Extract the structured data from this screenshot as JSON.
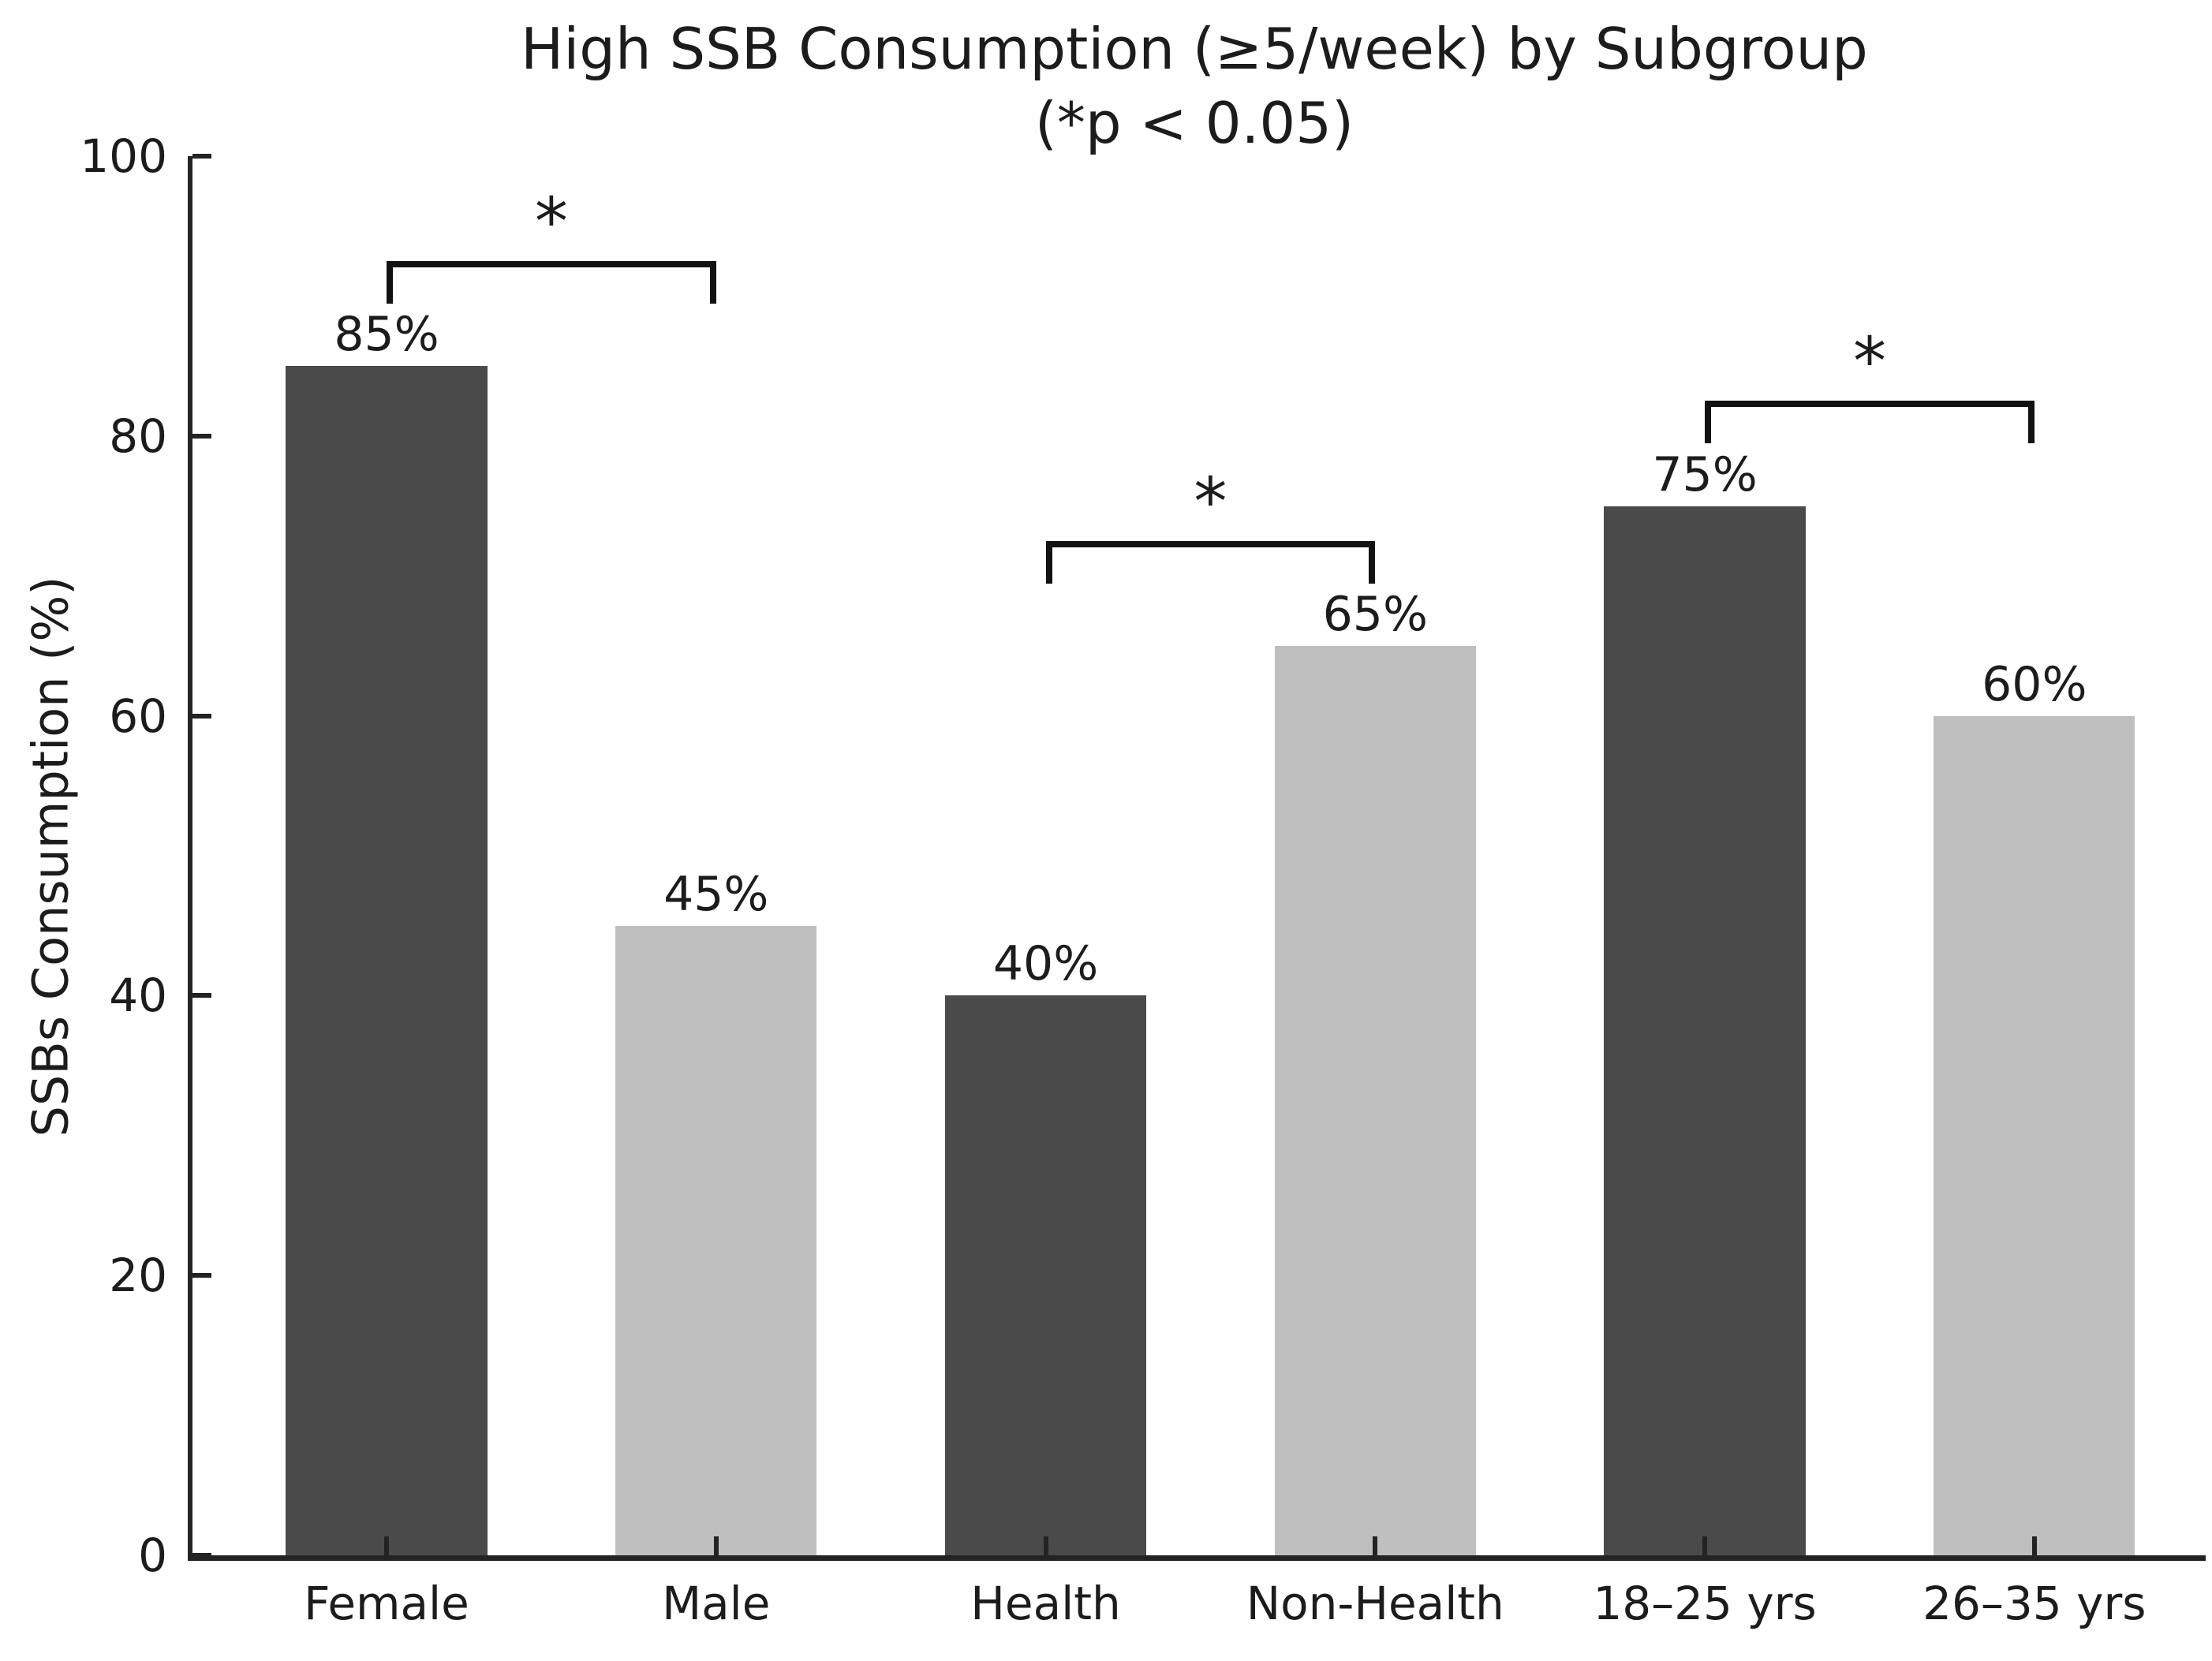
{
  "figure": {
    "background": "#ffffff"
  },
  "chart_data": {
    "type": "bar",
    "title": "High SSB Consumption (≥5/week) by Subgroup",
    "subtitle": "(*p < 0.05)",
    "ylabel": "SSBs Consumption (%)",
    "xlabel": "",
    "categories": [
      "Female",
      "Male",
      "Health",
      "Non-Health",
      "18–25 yrs",
      "26–35 yrs"
    ],
    "values": [
      85,
      45,
      40,
      65,
      75,
      60
    ],
    "value_labels": [
      "85%",
      "45%",
      "40%",
      "65%",
      "75%",
      "60%"
    ],
    "bar_colors": [
      "#4a4a4a",
      "#bfbfbf",
      "#4a4a4a",
      "#bfbfbf",
      "#4a4a4a",
      "#bfbfbf"
    ],
    "ylim": [
      0,
      100
    ],
    "yticks": [
      0,
      20,
      40,
      60,
      80,
      100
    ],
    "ytick_labels": [
      "0",
      "20",
      "40",
      "60",
      "80",
      "100"
    ],
    "grid": false,
    "legend": null,
    "significance_brackets": [
      {
        "between": [
          "Female",
          "Male"
        ],
        "from_index": 0,
        "to_index": 1,
        "height_value": 92.5,
        "label": "*"
      },
      {
        "between": [
          "Health",
          "Non-Health"
        ],
        "from_index": 2,
        "to_index": 3,
        "height_value": 72.5,
        "label": "*"
      },
      {
        "between": [
          "18–25 yrs",
          "26–35 yrs"
        ],
        "from_index": 4,
        "to_index": 5,
        "height_value": 82.5,
        "label": "*"
      }
    ],
    "palette": {
      "dark_bar": "#4a4a4a",
      "light_bar": "#bfbfbf",
      "axis": "#232323",
      "text": "#1c1c1c",
      "bracket": "#121212"
    }
  }
}
